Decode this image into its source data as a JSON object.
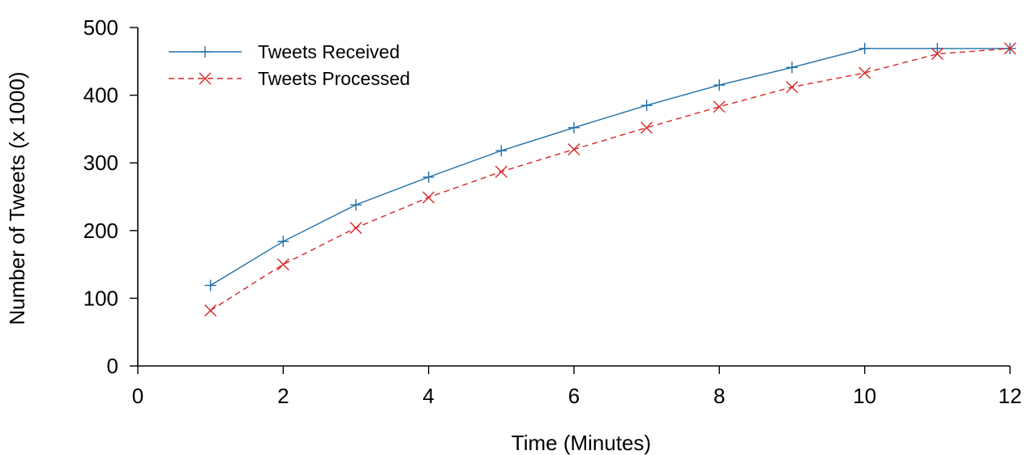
{
  "chart_data": {
    "type": "line",
    "title": "",
    "xlabel": "Time (Minutes)",
    "ylabel": "Number of Tweets (x 1000)",
    "xlim": [
      0,
      12
    ],
    "ylim": [
      0,
      500
    ],
    "xticks": [
      "0",
      "2",
      "4",
      "6",
      "8",
      "10",
      "12"
    ],
    "yticks": [
      "0",
      "100",
      "200",
      "300",
      "400",
      "500"
    ],
    "grid": false,
    "legend_position": "top-left",
    "series": [
      {
        "name": "Tweets Received",
        "color": "#1f6fa8",
        "line_style": "solid",
        "marker": "plus",
        "x": [
          1,
          2,
          3,
          4,
          5,
          6,
          7,
          8,
          9,
          10,
          11,
          12
        ],
        "y": [
          119,
          184,
          238,
          279,
          318,
          352,
          385,
          415,
          441,
          469,
          469,
          469
        ]
      },
      {
        "name": "Tweets Processed",
        "color": "#d62728",
        "line_style": "dashed",
        "marker": "x",
        "x": [
          1,
          2,
          3,
          4,
          5,
          6,
          7,
          8,
          9,
          10,
          11,
          12
        ],
        "y": [
          82,
          150,
          204,
          249,
          287,
          320,
          352,
          383,
          412,
          433,
          461,
          469
        ]
      }
    ]
  }
}
